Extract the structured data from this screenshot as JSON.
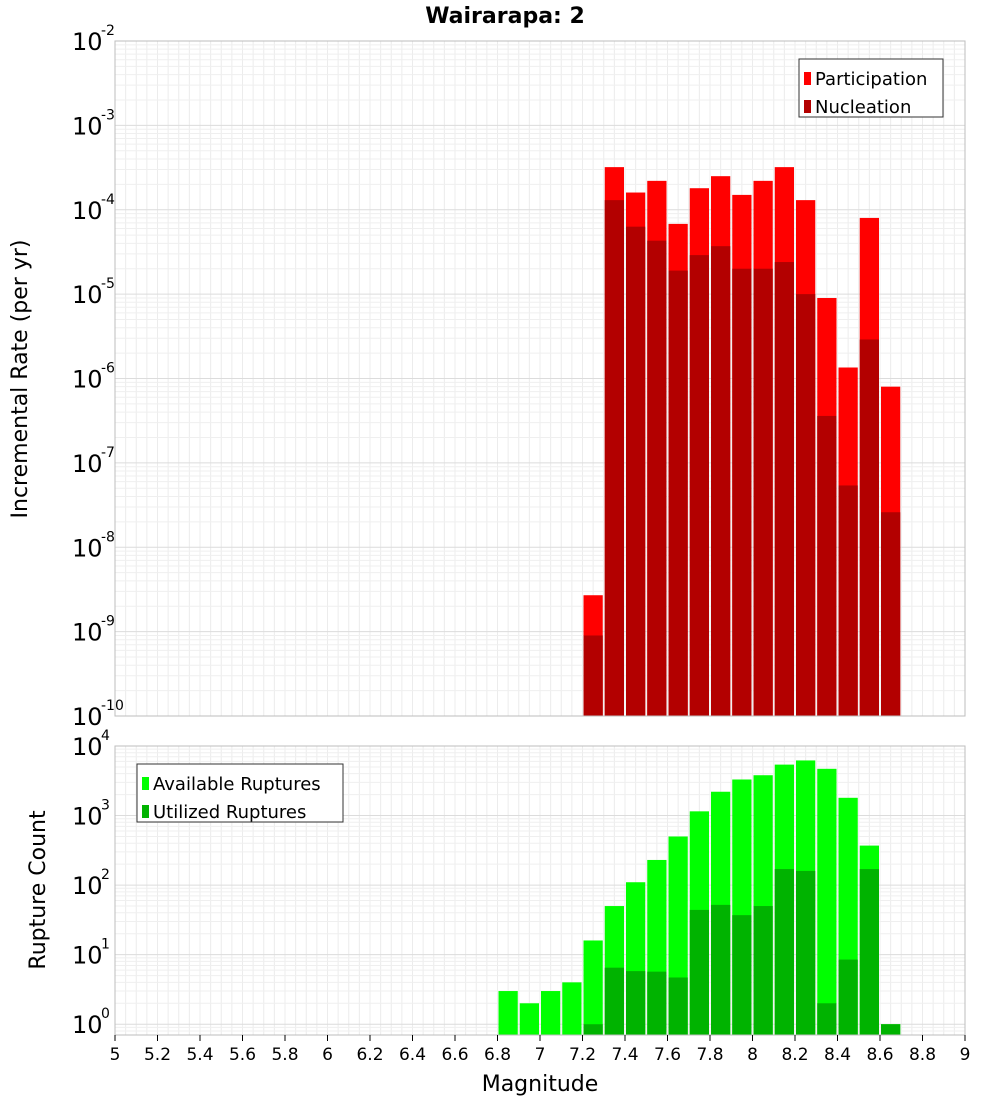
{
  "chart_title": "Wairarapa: 2",
  "x_axis_label": "Magnitude",
  "x_ticks": [
    "5",
    "5.2",
    "5.4",
    "5.6",
    "5.8",
    "6",
    "6.2",
    "6.4",
    "6.6",
    "6.8",
    "7",
    "7.2",
    "7.4",
    "7.6",
    "7.8",
    "8",
    "8.2",
    "8.4",
    "8.6",
    "8.8",
    "9"
  ],
  "chart_data": [
    {
      "type": "bar",
      "title": "Wairarapa: 2",
      "xlabel": "Magnitude",
      "ylabel": "Incremental Rate (per yr)",
      "y_scale": "log",
      "xlim": [
        5,
        9
      ],
      "ylim": [
        1e-10,
        0.01
      ],
      "y_tick_labels": [
        {
          "value": 0.01,
          "base": "10",
          "exp": "-2"
        },
        {
          "value": 0.001,
          "base": "10",
          "exp": "-3"
        },
        {
          "value": 0.0001,
          "base": "10",
          "exp": "-4"
        },
        {
          "value": 1e-05,
          "base": "10",
          "exp": "-5"
        },
        {
          "value": 1e-06,
          "base": "10",
          "exp": "-6"
        },
        {
          "value": 1e-07,
          "base": "10",
          "exp": "-7"
        },
        {
          "value": 1e-08,
          "base": "10",
          "exp": "-8"
        },
        {
          "value": 1e-09,
          "base": "10",
          "exp": "-9"
        },
        {
          "value": 1e-10,
          "base": "10",
          "exp": "-10"
        }
      ],
      "legend_position": "top-right",
      "bar_width": 0.1,
      "x": [
        7.25,
        7.35,
        7.45,
        7.55,
        7.65,
        7.75,
        7.85,
        7.95,
        8.05,
        8.15,
        8.25,
        8.35,
        8.45,
        8.55,
        8.65
      ],
      "series": [
        {
          "name": "Participation",
          "color": "#ff0000",
          "values": [
            2.7e-09,
            0.00032,
            0.00016,
            0.00022,
            6.8e-05,
            0.00018,
            0.00025,
            0.00015,
            0.00022,
            0.00032,
            0.00013,
            9e-06,
            1.35e-06,
            8e-05,
            8e-07
          ]
        },
        {
          "name": "Nucleation",
          "color": "#b30000",
          "values": [
            9e-10,
            0.00013,
            6.3e-05,
            4.3e-05,
            1.9e-05,
            2.9e-05,
            3.7e-05,
            2e-05,
            2e-05,
            2.4e-05,
            1e-05,
            3.6e-07,
            5.4e-08,
            2.9e-06,
            2.6e-08
          ]
        }
      ]
    },
    {
      "type": "bar",
      "title": "",
      "xlabel": "Magnitude",
      "ylabel": "Rupture Count",
      "y_scale": "log",
      "xlim": [
        5,
        9
      ],
      "ylim": [
        0.7,
        10000
      ],
      "y_tick_labels": [
        {
          "value": 10000,
          "base": "10",
          "exp": "4"
        },
        {
          "value": 1000,
          "base": "10",
          "exp": "3"
        },
        {
          "value": 100,
          "base": "10",
          "exp": "2"
        },
        {
          "value": 10,
          "base": "10",
          "exp": "1"
        },
        {
          "value": 1,
          "base": "10",
          "exp": "0"
        }
      ],
      "legend_position": "top-left",
      "bar_width": 0.1,
      "x": [
        6.85,
        6.95,
        7.05,
        7.15,
        7.25,
        7.35,
        7.45,
        7.55,
        7.65,
        7.75,
        7.85,
        7.95,
        8.05,
        8.15,
        8.25,
        8.35,
        8.45,
        8.55,
        8.65
      ],
      "series": [
        {
          "name": "Available Ruptures",
          "color": "#00ff00",
          "values": [
            3,
            2,
            3,
            4,
            16,
            50,
            110,
            230,
            500,
            1150,
            2200,
            3300,
            3800,
            5400,
            6200,
            4700,
            1800,
            370,
            1
          ]
        },
        {
          "name": "Utilized Ruptures",
          "color": "#00b300",
          "values": [
            0,
            0,
            0,
            0,
            1,
            6.5,
            5.8,
            5.7,
            4.7,
            44,
            52,
            37,
            50,
            170,
            160,
            2,
            8.5,
            170,
            1
          ]
        }
      ]
    }
  ]
}
